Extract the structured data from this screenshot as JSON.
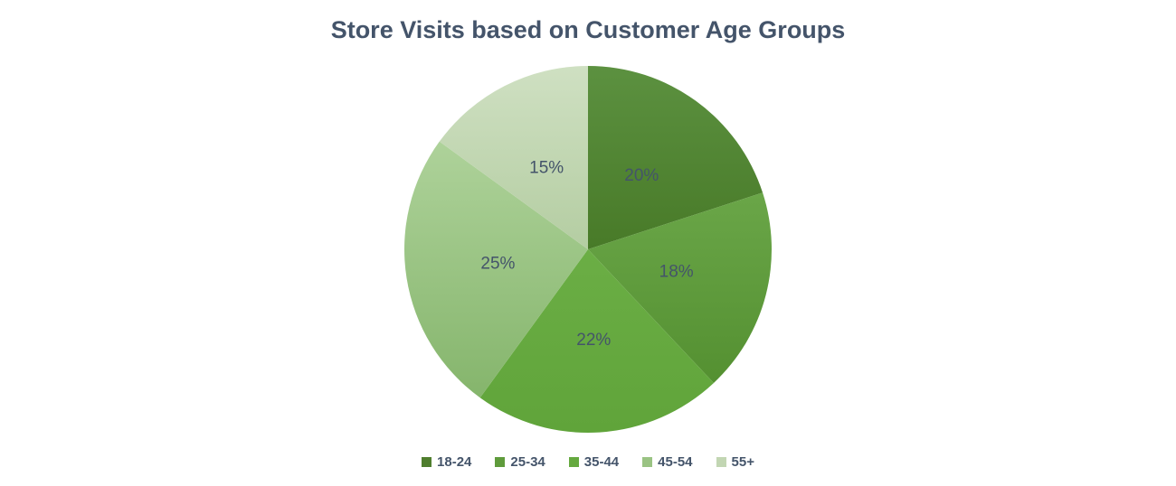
{
  "chart_data": {
    "type": "pie",
    "title": "Store Visits based on Customer Age Groups",
    "categories": [
      "18-24",
      "25-34",
      "35-44",
      "45-54",
      "55+"
    ],
    "values": [
      20,
      18,
      22,
      25,
      15
    ],
    "slice_labels": [
      "20%",
      "18%",
      "22%",
      "25%",
      "15%"
    ],
    "start_angle_deg": 0,
    "direction": "clockwise",
    "legend_position": "bottom",
    "background_color": "#FFFFFF",
    "title_color": "#44546A",
    "label_color": "#44546A",
    "legend_text_color": "#44546A",
    "slice_colors": [
      {
        "category": "18-24",
        "gradient_top": "#5C9140",
        "gradient_bottom": "#487A28",
        "legend_swatch": "#4F7E2E"
      },
      {
        "category": "25-34",
        "gradient_top": "#6AA648",
        "gradient_bottom": "#549031",
        "legend_swatch": "#5F9B3C"
      },
      {
        "category": "35-44",
        "gradient_top": "#6BAE45",
        "gradient_bottom": "#60A43A",
        "legend_swatch": "#65A93F"
      },
      {
        "category": "45-54",
        "gradient_top": "#AED29A",
        "gradient_bottom": "#85B56C",
        "legend_swatch": "#9AC383"
      },
      {
        "category": "55+",
        "gradient_top": "#CFE0C2",
        "gradient_bottom": "#B4CDA2",
        "legend_swatch": "#C2D6B3"
      }
    ]
  }
}
